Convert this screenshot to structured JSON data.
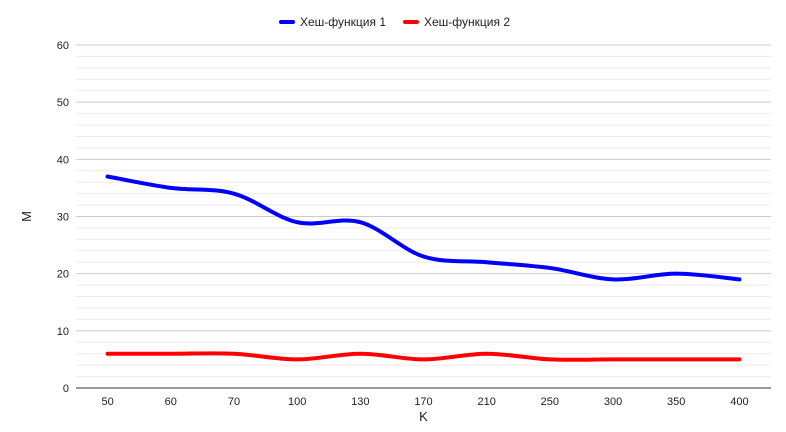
{
  "chart_data": {
    "type": "line",
    "title": "",
    "xlabel": "K",
    "ylabel": "M",
    "categories": [
      "50",
      "60",
      "70",
      "100",
      "130",
      "170",
      "210",
      "250",
      "300",
      "350",
      "400"
    ],
    "ylim": [
      0,
      60
    ],
    "yticks": [
      0,
      10,
      20,
      30,
      40,
      50,
      60
    ],
    "grid": true,
    "legend_position": "top",
    "series": [
      {
        "name": "Хеш-функция 1",
        "color": "#0000ff",
        "values": [
          37,
          35,
          34,
          29,
          29,
          23,
          22,
          21,
          19,
          20,
          19
        ]
      },
      {
        "name": "Хеш-функция 2",
        "color": "#ff0000",
        "values": [
          6,
          6,
          6,
          5,
          6,
          5,
          6,
          5,
          5,
          5,
          5
        ]
      }
    ]
  }
}
